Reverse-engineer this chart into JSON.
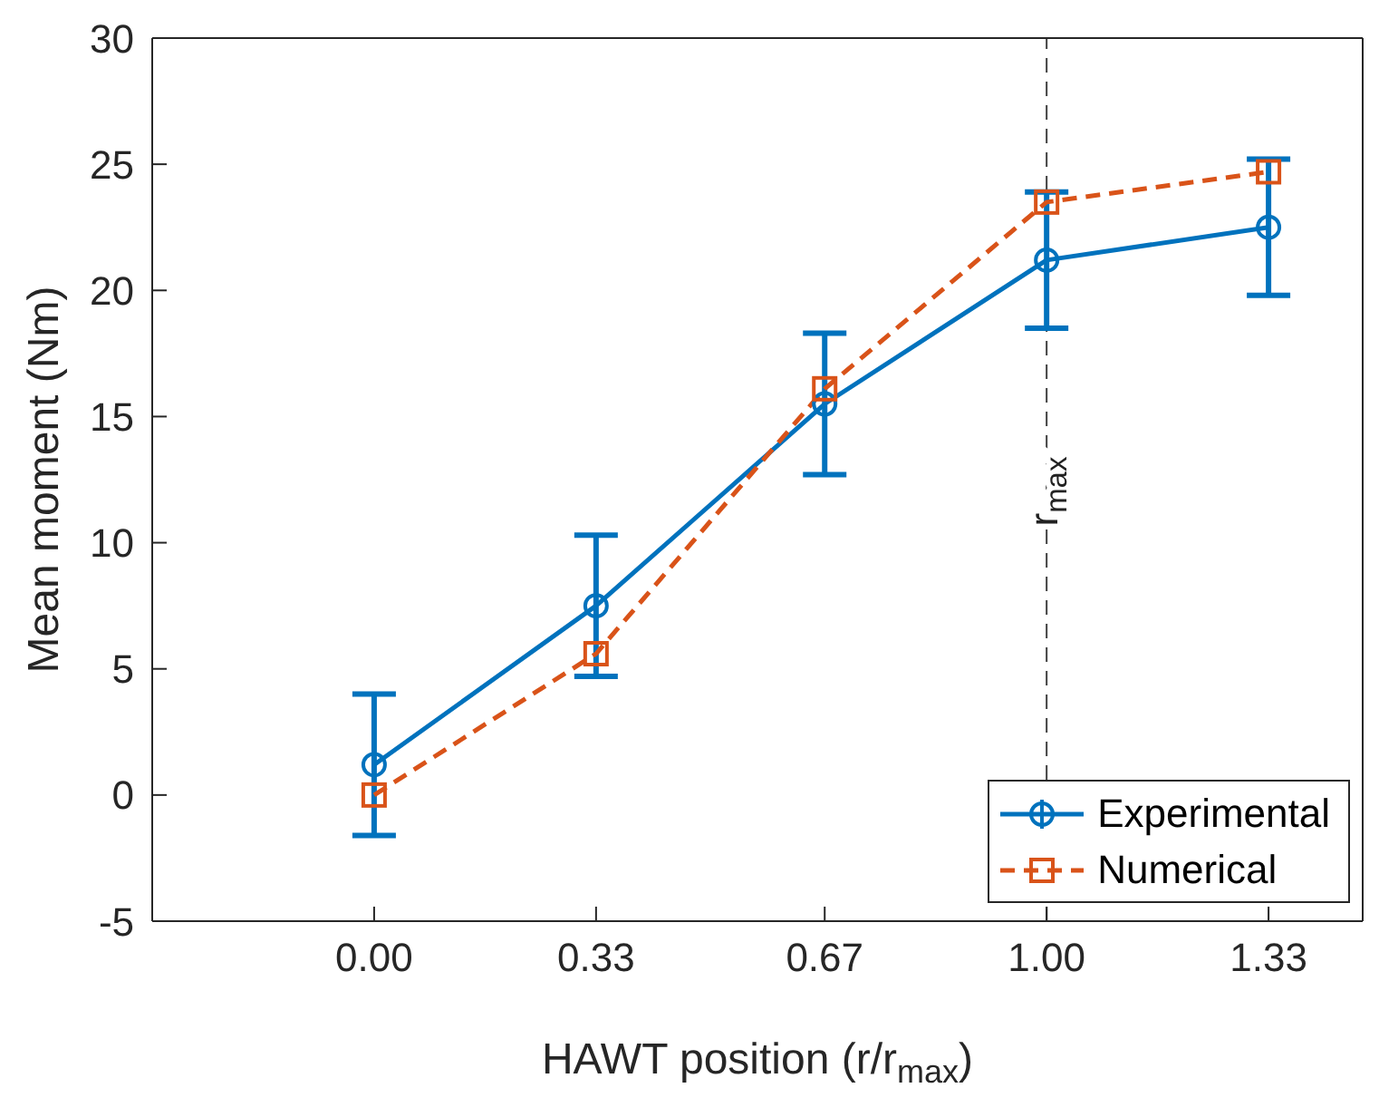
{
  "chart_data": {
    "type": "line",
    "xlabel": "HAWT position (r/r$_{max}$)",
    "ylabel": "Mean moment (Nm)",
    "x": [
      0,
      0.33,
      0.67,
      1,
      1.33
    ],
    "series": [
      {
        "name": "Experimental",
        "color": "#0072bd",
        "values": [
          1.2,
          7.5,
          15.5,
          21.2,
          22.5
        ],
        "errors": [
          2.8,
          2.8,
          2.8,
          2.7,
          2.7
        ],
        "marker": "circle",
        "line_style": "solid"
      },
      {
        "name": "Numerical",
        "color": "#d95319",
        "values": [
          0,
          5.6,
          16.1,
          23.5,
          24.7
        ],
        "marker": "square",
        "line_style": "dashed"
      }
    ],
    "xlim": [
      -0.33,
      1.47
    ],
    "xticks": [
      {
        "value": 0,
        "label": "0.00"
      },
      {
        "value": 0.33,
        "label": "0.33"
      },
      {
        "value": 0.67,
        "label": "0.67"
      },
      {
        "value": 1,
        "label": "1.00"
      },
      {
        "value": 1.33,
        "label": "1.33"
      }
    ],
    "ylim": [
      -5,
      30
    ],
    "yticks": [
      -5,
      0,
      5,
      10,
      15,
      20,
      25,
      30
    ],
    "ref_lines": [
      {
        "axis": "x",
        "value": 1,
        "label": "r$_{max}$",
        "color": "#404040",
        "line_style": "dashed"
      }
    ],
    "grid": false,
    "legend": "bottom right"
  }
}
